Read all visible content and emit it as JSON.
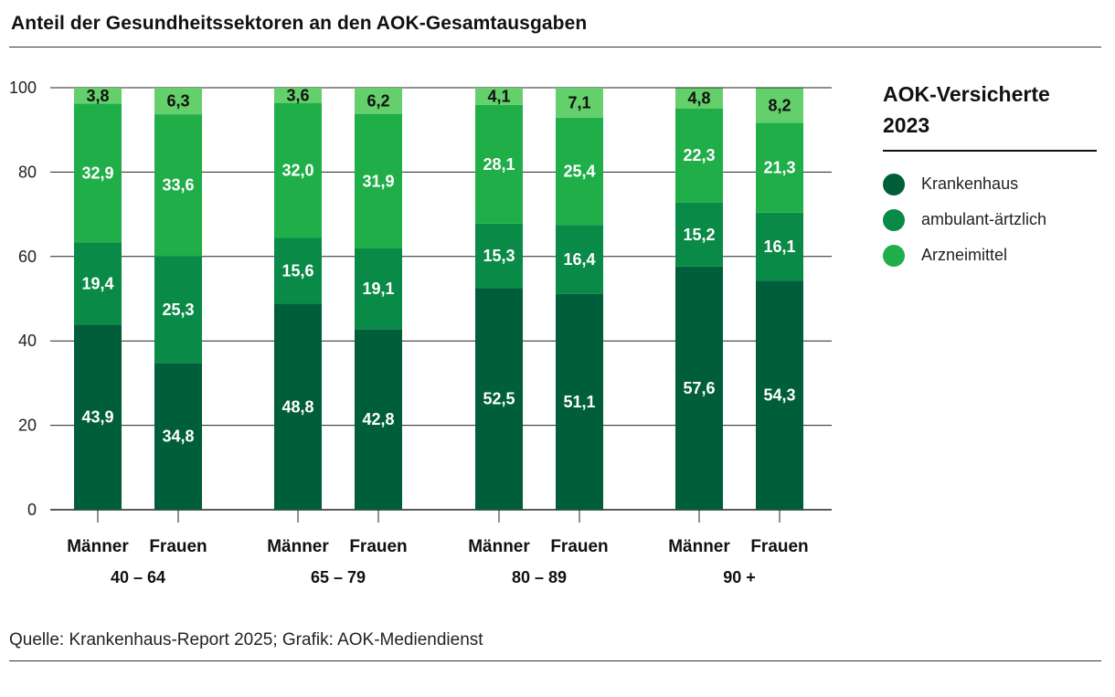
{
  "title": "Anteil der Gesundheitssektoren an den AOK-Gesamtausgaben",
  "source": "Quelle: Krankenhaus-Report 2025; Grafik: AOK-Mediendienst",
  "legend": {
    "title_line1": "AOK-Versicherte",
    "title_line2": "2023",
    "items": [
      {
        "label": "Krankenhaus",
        "color": "#005e3a"
      },
      {
        "label": "ambulant-ärtzlich",
        "color": "#0a8a47"
      },
      {
        "label": "Arzneimittel",
        "color": "#1fae48"
      }
    ]
  },
  "chart_data": {
    "type": "bar",
    "stacked": true,
    "ylim": [
      0,
      100
    ],
    "yticks": [
      0,
      20,
      40,
      60,
      80,
      100
    ],
    "grid": true,
    "legend_position": "right",
    "groups": [
      "40 – 64",
      "65 – 79",
      "80 – 89",
      "90 +"
    ],
    "categories": [
      "Männer",
      "Frauen",
      "Männer",
      "Frauen",
      "Männer",
      "Frauen",
      "Männer",
      "Frauen"
    ],
    "series": [
      {
        "name": "Krankenhaus",
        "color": "#005e3a",
        "values": [
          43.9,
          34.8,
          48.8,
          42.8,
          52.5,
          51.1,
          57.6,
          54.3
        ]
      },
      {
        "name": "ambulant-ärtzlich",
        "color": "#0a8a47",
        "values": [
          19.4,
          25.3,
          15.6,
          19.1,
          15.3,
          16.4,
          15.2,
          16.1
        ]
      },
      {
        "name": "Arzneimittel",
        "color": "#1fae48",
        "values": [
          32.9,
          33.6,
          32.0,
          31.9,
          28.1,
          25.4,
          22.3,
          21.3
        ]
      },
      {
        "name": "",
        "color": "#63d06b",
        "values": [
          3.8,
          6.3,
          3.6,
          6.2,
          4.1,
          7.1,
          4.8,
          8.2
        ]
      }
    ],
    "value_labels": [
      [
        "43,9",
        "34,8",
        "48,8",
        "42,8",
        "52,5",
        "51,1",
        "57,6",
        "54,3"
      ],
      [
        "19,4",
        "25,3",
        "15,6",
        "19,1",
        "15,3",
        "16,4",
        "15,2",
        "16,1"
      ],
      [
        "32,9",
        "33,6",
        "32,0",
        "31,9",
        "28,1",
        "25,4",
        "22,3",
        "21,3"
      ],
      [
        "3,8",
        "6,3",
        "3,6",
        "6,2",
        "4,1",
        "7,1",
        "4,8",
        "8,2"
      ]
    ]
  }
}
